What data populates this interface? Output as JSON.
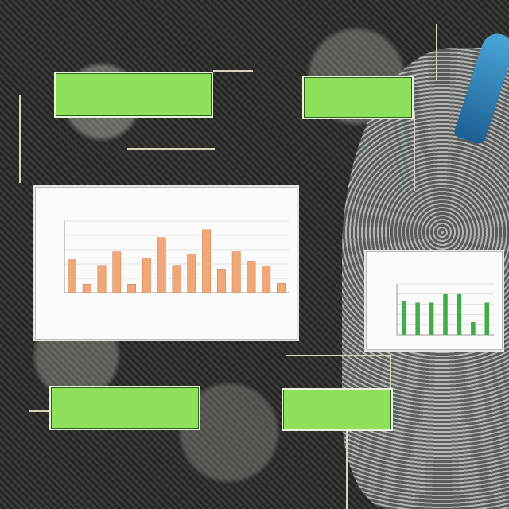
{
  "labels": {
    "top_left": [
      "",
      ""
    ],
    "top_right": [
      "",
      ""
    ],
    "bottom_left": [
      "",
      ""
    ],
    "bottom_right": [
      "",
      ""
    ]
  },
  "chart_main": {
    "title": "",
    "values": [
      46,
      12,
      38,
      57,
      12,
      48,
      77,
      38,
      54,
      88,
      33,
      57,
      44,
      37,
      13
    ],
    "bar_color": "#f0a878",
    "ylim": [
      0,
      100
    ]
  },
  "chart_small": {
    "title": "",
    "values": [
      40,
      38,
      38,
      48,
      48,
      15,
      38
    ],
    "bar_color": "#3fae4a",
    "ylim": [
      0,
      60
    ]
  },
  "colors": {
    "label_fill": "#8fe05a",
    "accent_blue": "#3d9ad0"
  }
}
